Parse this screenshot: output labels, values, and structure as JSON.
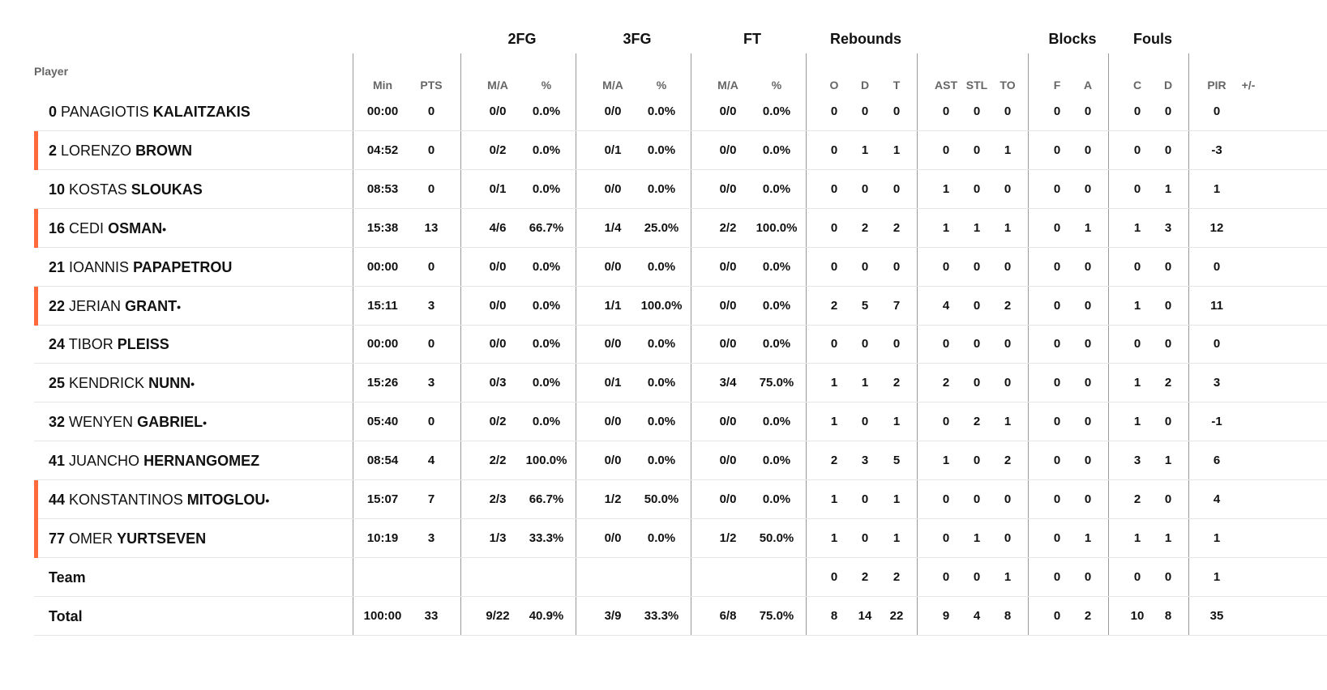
{
  "headers": {
    "player": "Player",
    "groups": {
      "fg2": "2FG",
      "fg3": "3FG",
      "ft": "FT",
      "rebounds": "Rebounds",
      "blocks": "Blocks",
      "fouls": "Fouls"
    },
    "sub": {
      "min": "Min",
      "pts": "PTS",
      "fg2_ma": "M/A",
      "fg2_pct": "%",
      "fg3_ma": "M/A",
      "fg3_pct": "%",
      "ft_ma": "M/A",
      "ft_pct": "%",
      "reb_o": "O",
      "reb_d": "D",
      "reb_t": "T",
      "ast": "AST",
      "stl": "STL",
      "to": "TO",
      "blk_f": "F",
      "blk_a": "A",
      "foul_c": "C",
      "foul_d": "D",
      "pir": "PIR",
      "pm": "+/-"
    }
  },
  "colors": {
    "starter_marker": "#ff6a3d",
    "divider": "#999999",
    "row_border": "#e6e6e6"
  },
  "rows": [
    {
      "num": "0",
      "first": "PANAGIOTIS",
      "last": "KALAITZAKIS",
      "mark": "",
      "starter": false,
      "min": "00:00",
      "pts": "0",
      "fg2_ma": "0/0",
      "fg2_pct": "0.0%",
      "fg3_ma": "0/0",
      "fg3_pct": "0.0%",
      "ft_ma": "0/0",
      "ft_pct": "0.0%",
      "o": "0",
      "d": "0",
      "t": "0",
      "ast": "0",
      "stl": "0",
      "to": "0",
      "bf": "0",
      "ba": "0",
      "fc": "0",
      "fd": "0",
      "pir": "0",
      "pm": ""
    },
    {
      "num": "2",
      "first": "LORENZO",
      "last": "BROWN",
      "mark": "",
      "starter": true,
      "min": "04:52",
      "pts": "0",
      "fg2_ma": "0/2",
      "fg2_pct": "0.0%",
      "fg3_ma": "0/1",
      "fg3_pct": "0.0%",
      "ft_ma": "0/0",
      "ft_pct": "0.0%",
      "o": "0",
      "d": "1",
      "t": "1",
      "ast": "0",
      "stl": "0",
      "to": "1",
      "bf": "0",
      "ba": "0",
      "fc": "0",
      "fd": "0",
      "pir": "-3",
      "pm": ""
    },
    {
      "num": "10",
      "first": "KOSTAS",
      "last": "SLOUKAS",
      "mark": "",
      "starter": false,
      "min": "08:53",
      "pts": "0",
      "fg2_ma": "0/1",
      "fg2_pct": "0.0%",
      "fg3_ma": "0/0",
      "fg3_pct": "0.0%",
      "ft_ma": "0/0",
      "ft_pct": "0.0%",
      "o": "0",
      "d": "0",
      "t": "0",
      "ast": "1",
      "stl": "0",
      "to": "0",
      "bf": "0",
      "ba": "0",
      "fc": "0",
      "fd": "1",
      "pir": "1",
      "pm": ""
    },
    {
      "num": "16",
      "first": "CEDI",
      "last": "OSMAN",
      "mark": "•",
      "starter": true,
      "min": "15:38",
      "pts": "13",
      "fg2_ma": "4/6",
      "fg2_pct": "66.7%",
      "fg3_ma": "1/4",
      "fg3_pct": "25.0%",
      "ft_ma": "2/2",
      "ft_pct": "100.0%",
      "o": "0",
      "d": "2",
      "t": "2",
      "ast": "1",
      "stl": "1",
      "to": "1",
      "bf": "0",
      "ba": "1",
      "fc": "1",
      "fd": "3",
      "pir": "12",
      "pm": ""
    },
    {
      "num": "21",
      "first": "IOANNIS",
      "last": "PAPAPETROU",
      "mark": "",
      "starter": false,
      "min": "00:00",
      "pts": "0",
      "fg2_ma": "0/0",
      "fg2_pct": "0.0%",
      "fg3_ma": "0/0",
      "fg3_pct": "0.0%",
      "ft_ma": "0/0",
      "ft_pct": "0.0%",
      "o": "0",
      "d": "0",
      "t": "0",
      "ast": "0",
      "stl": "0",
      "to": "0",
      "bf": "0",
      "ba": "0",
      "fc": "0",
      "fd": "0",
      "pir": "0",
      "pm": ""
    },
    {
      "num": "22",
      "first": "JERIAN",
      "last": "GRANT",
      "mark": "•",
      "starter": true,
      "min": "15:11",
      "pts": "3",
      "fg2_ma": "0/0",
      "fg2_pct": "0.0%",
      "fg3_ma": "1/1",
      "fg3_pct": "100.0%",
      "ft_ma": "0/0",
      "ft_pct": "0.0%",
      "o": "2",
      "d": "5",
      "t": "7",
      "ast": "4",
      "stl": "0",
      "to": "2",
      "bf": "0",
      "ba": "0",
      "fc": "1",
      "fd": "0",
      "pir": "11",
      "pm": ""
    },
    {
      "num": "24",
      "first": "TIBOR",
      "last": "PLEISS",
      "mark": "",
      "starter": false,
      "min": "00:00",
      "pts": "0",
      "fg2_ma": "0/0",
      "fg2_pct": "0.0%",
      "fg3_ma": "0/0",
      "fg3_pct": "0.0%",
      "ft_ma": "0/0",
      "ft_pct": "0.0%",
      "o": "0",
      "d": "0",
      "t": "0",
      "ast": "0",
      "stl": "0",
      "to": "0",
      "bf": "0",
      "ba": "0",
      "fc": "0",
      "fd": "0",
      "pir": "0",
      "pm": ""
    },
    {
      "num": "25",
      "first": "KENDRICK",
      "last": "NUNN",
      "mark": "•",
      "starter": false,
      "min": "15:26",
      "pts": "3",
      "fg2_ma": "0/3",
      "fg2_pct": "0.0%",
      "fg3_ma": "0/1",
      "fg3_pct": "0.0%",
      "ft_ma": "3/4",
      "ft_pct": "75.0%",
      "o": "1",
      "d": "1",
      "t": "2",
      "ast": "2",
      "stl": "0",
      "to": "0",
      "bf": "0",
      "ba": "0",
      "fc": "1",
      "fd": "2",
      "pir": "3",
      "pm": ""
    },
    {
      "num": "32",
      "first": "WENYEN",
      "last": "GABRIEL",
      "mark": "•",
      "starter": false,
      "min": "05:40",
      "pts": "0",
      "fg2_ma": "0/2",
      "fg2_pct": "0.0%",
      "fg3_ma": "0/0",
      "fg3_pct": "0.0%",
      "ft_ma": "0/0",
      "ft_pct": "0.0%",
      "o": "1",
      "d": "0",
      "t": "1",
      "ast": "0",
      "stl": "2",
      "to": "1",
      "bf": "0",
      "ba": "0",
      "fc": "1",
      "fd": "0",
      "pir": "-1",
      "pm": ""
    },
    {
      "num": "41",
      "first": "JUANCHO",
      "last": "HERNANGOMEZ",
      "mark": "",
      "starter": false,
      "min": "08:54",
      "pts": "4",
      "fg2_ma": "2/2",
      "fg2_pct": "100.0%",
      "fg3_ma": "0/0",
      "fg3_pct": "0.0%",
      "ft_ma": "0/0",
      "ft_pct": "0.0%",
      "o": "2",
      "d": "3",
      "t": "5",
      "ast": "1",
      "stl": "0",
      "to": "2",
      "bf": "0",
      "ba": "0",
      "fc": "3",
      "fd": "1",
      "pir": "6",
      "pm": ""
    },
    {
      "num": "44",
      "first": "KONSTANTINOS",
      "last": "MITOGLOU",
      "mark": "•",
      "starter": true,
      "min": "15:07",
      "pts": "7",
      "fg2_ma": "2/3",
      "fg2_pct": "66.7%",
      "fg3_ma": "1/2",
      "fg3_pct": "50.0%",
      "ft_ma": "0/0",
      "ft_pct": "0.0%",
      "o": "1",
      "d": "0",
      "t": "1",
      "ast": "0",
      "stl": "0",
      "to": "0",
      "bf": "0",
      "ba": "0",
      "fc": "2",
      "fd": "0",
      "pir": "4",
      "pm": ""
    },
    {
      "num": "77",
      "first": "OMER",
      "last": "YURTSEVEN",
      "mark": "",
      "starter": true,
      "min": "10:19",
      "pts": "3",
      "fg2_ma": "1/3",
      "fg2_pct": "33.3%",
      "fg3_ma": "0/0",
      "fg3_pct": "0.0%",
      "ft_ma": "1/2",
      "ft_pct": "50.0%",
      "o": "1",
      "d": "0",
      "t": "1",
      "ast": "0",
      "stl": "1",
      "to": "0",
      "bf": "0",
      "ba": "1",
      "fc": "1",
      "fd": "1",
      "pir": "1",
      "pm": ""
    },
    {
      "label": "Team",
      "starter": false,
      "min": "",
      "pts": "",
      "fg2_ma": "",
      "fg2_pct": "",
      "fg3_ma": "",
      "fg3_pct": "",
      "ft_ma": "",
      "ft_pct": "",
      "o": "0",
      "d": "2",
      "t": "2",
      "ast": "0",
      "stl": "0",
      "to": "1",
      "bf": "0",
      "ba": "0",
      "fc": "0",
      "fd": "0",
      "pir": "1",
      "pm": ""
    },
    {
      "label": "Total",
      "starter": false,
      "min": "100:00",
      "pts": "33",
      "fg2_ma": "9/22",
      "fg2_pct": "40.9%",
      "fg3_ma": "3/9",
      "fg3_pct": "33.3%",
      "ft_ma": "6/8",
      "ft_pct": "75.0%",
      "o": "8",
      "d": "14",
      "t": "22",
      "ast": "9",
      "stl": "4",
      "to": "8",
      "bf": "0",
      "ba": "2",
      "fc": "10",
      "fd": "8",
      "pir": "35",
      "pm": ""
    }
  ]
}
